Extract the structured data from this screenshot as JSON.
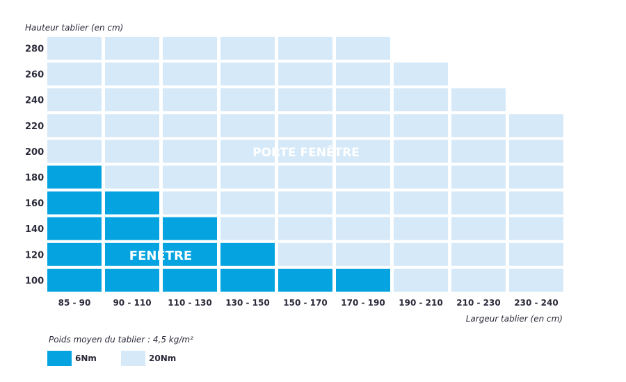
{
  "chart_data": {
    "type": "heatmap",
    "ylabel": "Hauteur tablier (en cm)",
    "xlabel": "Largeur tablier (en cm)",
    "categories": [
      "85 - 90",
      "90 - 110",
      "110 - 130",
      "130 - 150",
      "150 - 170",
      "170 - 190",
      "190 - 210",
      "210 - 230",
      "230 - 240"
    ],
    "y_categories": [
      "280",
      "260",
      "240",
      "220",
      "200",
      "180",
      "160",
      "140",
      "120",
      "100"
    ],
    "cells": [
      [
        2,
        2,
        2,
        2,
        2,
        2,
        0,
        0,
        0
      ],
      [
        2,
        2,
        2,
        2,
        2,
        2,
        2,
        0,
        0
      ],
      [
        2,
        2,
        2,
        2,
        2,
        2,
        2,
        2,
        0
      ],
      [
        2,
        2,
        2,
        2,
        2,
        2,
        2,
        2,
        2
      ],
      [
        2,
        2,
        2,
        2,
        2,
        2,
        2,
        2,
        2
      ],
      [
        1,
        2,
        2,
        2,
        2,
        2,
        2,
        2,
        2
      ],
      [
        1,
        1,
        2,
        2,
        2,
        2,
        2,
        2,
        2
      ],
      [
        1,
        1,
        1,
        2,
        2,
        2,
        2,
        2,
        2
      ],
      [
        1,
        1,
        1,
        1,
        2,
        2,
        2,
        2,
        2
      ],
      [
        1,
        1,
        1,
        1,
        1,
        1,
        2,
        2,
        2
      ]
    ],
    "cell_values": {
      "0": "",
      "1": "6Nm",
      "2": "20Nm"
    },
    "annotations": [
      "PORTE FENÊTRE",
      "FENÊTRE"
    ],
    "legend": [
      {
        "label": "6Nm",
        "color": "#05a4e1"
      },
      {
        "label": "20Nm",
        "color": "#d6e9f8"
      }
    ]
  },
  "note": {
    "text": "Poids moyen du tablier : 4,5 kg/m²"
  },
  "colors": {
    "dark": "#05a4e1",
    "light": "#d6e9f8",
    "text": "#2b2b3a"
  }
}
